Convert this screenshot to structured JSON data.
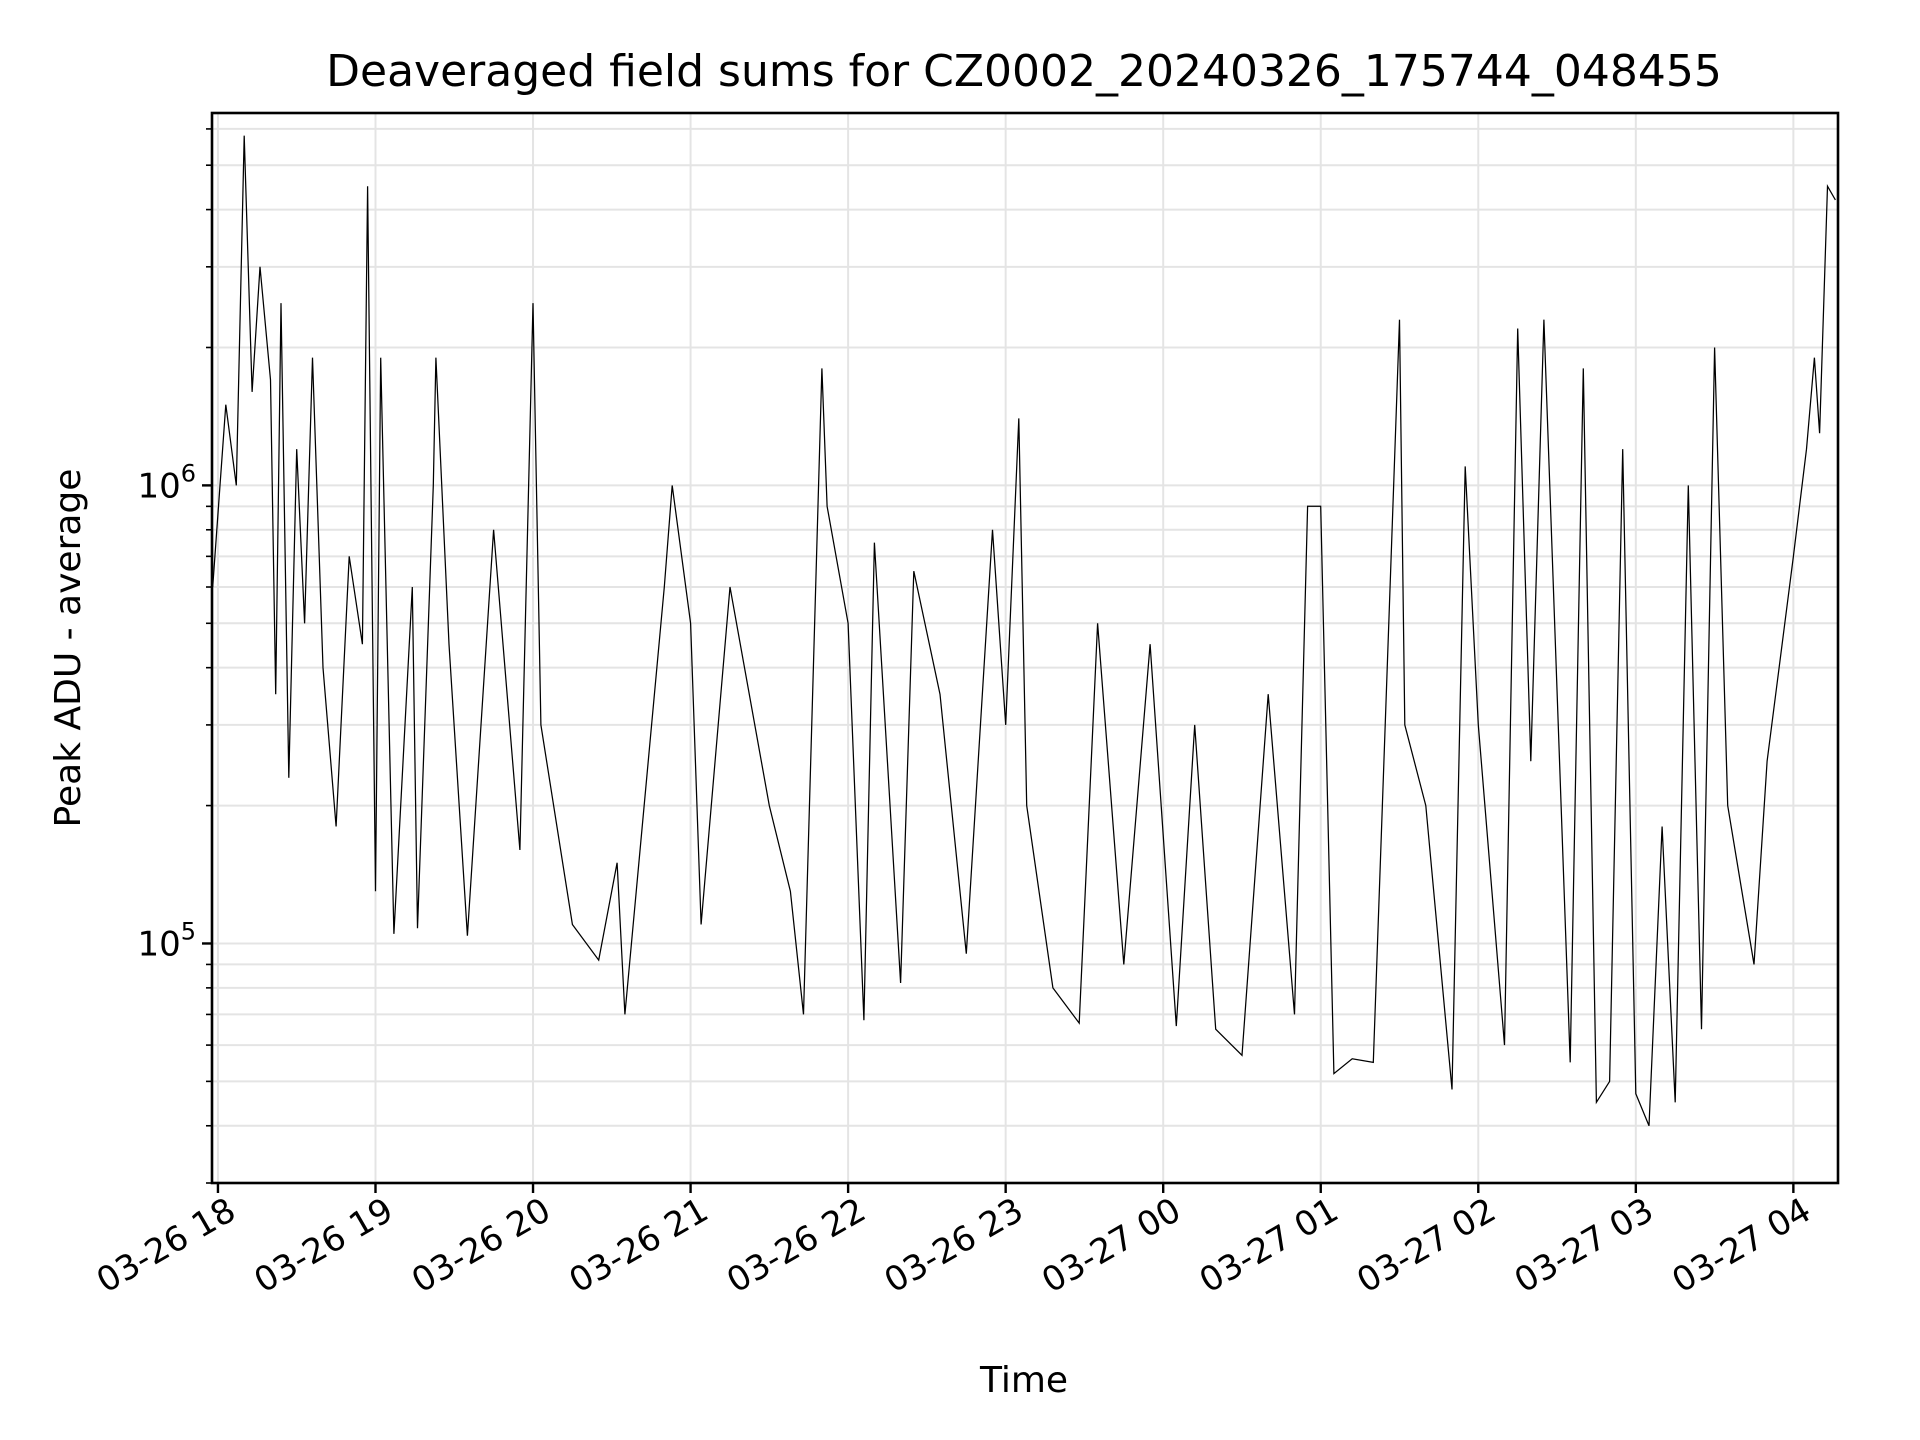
{
  "chart_data": {
    "type": "line",
    "title": "Deaveraged field sums for CZ0002_20240326_175744_048455",
    "xlabel": "Time",
    "ylabel": "Peak ADU - average",
    "yscale": "log",
    "ylim": [
      30000,
      6500000
    ],
    "xlim": [
      "2024-03-26 17:57:44",
      "2024-03-27 04:17:00"
    ],
    "xtick_labels": [
      "03-26 18",
      "03-26 19",
      "03-26 20",
      "03-26 21",
      "03-26 22",
      "03-26 23",
      "03-27 00",
      "03-27 01",
      "03-27 02",
      "03-27 03",
      "03-27 04"
    ],
    "xtick_times": [
      "2024-03-26 18:00",
      "2024-03-26 19:00",
      "2024-03-26 20:00",
      "2024-03-26 21:00",
      "2024-03-26 22:00",
      "2024-03-26 23:00",
      "2024-03-27 00:00",
      "2024-03-27 01:00",
      "2024-03-27 02:00",
      "2024-03-27 03:00",
      "2024-03-27 04:00"
    ],
    "ytick_labels": [
      {
        "base": "10",
        "exp": "5",
        "value": 100000
      },
      {
        "base": "10",
        "exp": "6",
        "value": 1000000
      }
    ],
    "grid": true,
    "legend": "none",
    "series": [
      {
        "color": "#000000",
        "points": [
          [
            "2024-03-26 17:58",
            600000
          ],
          [
            "2024-03-26 18:03",
            1500000
          ],
          [
            "2024-03-26 18:07",
            1000000
          ],
          [
            "2024-03-26 18:10",
            5800000
          ],
          [
            "2024-03-26 18:13",
            1600000
          ],
          [
            "2024-03-26 18:16",
            3000000
          ],
          [
            "2024-03-26 18:20",
            1700000
          ],
          [
            "2024-03-26 18:22",
            350000
          ],
          [
            "2024-03-26 18:24",
            2500000
          ],
          [
            "2024-03-26 18:27",
            230000
          ],
          [
            "2024-03-26 18:30",
            1200000
          ],
          [
            "2024-03-26 18:33",
            500000
          ],
          [
            "2024-03-26 18:36",
            1900000
          ],
          [
            "2024-03-26 18:40",
            400000
          ],
          [
            "2024-03-26 18:45",
            180000
          ],
          [
            "2024-03-26 18:50",
            700000
          ],
          [
            "2024-03-26 18:55",
            450000
          ],
          [
            "2024-03-26 18:57",
            4500000
          ],
          [
            "2024-03-26 19:00",
            130000
          ],
          [
            "2024-03-26 19:02",
            1900000
          ],
          [
            "2024-03-26 19:07",
            105000
          ],
          [
            "2024-03-26 19:14",
            600000
          ],
          [
            "2024-03-26 19:16",
            108000
          ],
          [
            "2024-03-26 19:22",
            1000000
          ],
          [
            "2024-03-26 19:23",
            1900000
          ],
          [
            "2024-03-26 19:28",
            450000
          ],
          [
            "2024-03-26 19:35",
            104000
          ],
          [
            "2024-03-26 19:45",
            800000
          ],
          [
            "2024-03-26 19:55",
            160000
          ],
          [
            "2024-03-26 20:00",
            2500000
          ],
          [
            "2024-03-26 20:03",
            300000
          ],
          [
            "2024-03-26 20:15",
            110000
          ],
          [
            "2024-03-26 20:25",
            92000
          ],
          [
            "2024-03-26 20:32",
            150000
          ],
          [
            "2024-03-26 20:35",
            70000
          ],
          [
            "2024-03-26 20:50",
            600000
          ],
          [
            "2024-03-26 20:53",
            1000000
          ],
          [
            "2024-03-26 21:00",
            500000
          ],
          [
            "2024-03-26 21:04",
            110000
          ],
          [
            "2024-03-26 21:15",
            600000
          ],
          [
            "2024-03-26 21:30",
            200000
          ],
          [
            "2024-03-26 21:38",
            130000
          ],
          [
            "2024-03-26 21:43",
            70000
          ],
          [
            "2024-03-26 21:50",
            1800000
          ],
          [
            "2024-03-26 21:52",
            900000
          ],
          [
            "2024-03-26 22:00",
            500000
          ],
          [
            "2024-03-26 22:06",
            68000
          ],
          [
            "2024-03-26 22:10",
            750000
          ],
          [
            "2024-03-26 22:20",
            82000
          ],
          [
            "2024-03-26 22:25",
            650000
          ],
          [
            "2024-03-26 22:35",
            350000
          ],
          [
            "2024-03-26 22:45",
            95000
          ],
          [
            "2024-03-26 22:55",
            800000
          ],
          [
            "2024-03-26 23:00",
            300000
          ],
          [
            "2024-03-26 23:05",
            1400000
          ],
          [
            "2024-03-26 23:08",
            200000
          ],
          [
            "2024-03-26 23:18",
            80000
          ],
          [
            "2024-03-26 23:28",
            67000
          ],
          [
            "2024-03-26 23:35",
            500000
          ],
          [
            "2024-03-26 23:45",
            90000
          ],
          [
            "2024-03-26 23:55",
            450000
          ],
          [
            "2024-03-27 00:05",
            66000
          ],
          [
            "2024-03-27 00:12",
            300000
          ],
          [
            "2024-03-27 00:20",
            65000
          ],
          [
            "2024-03-27 00:30",
            57000
          ],
          [
            "2024-03-27 00:40",
            350000
          ],
          [
            "2024-03-27 00:50",
            70000
          ],
          [
            "2024-03-27 00:55",
            900000
          ],
          [
            "2024-03-27 01:00",
            900000
          ],
          [
            "2024-03-27 01:05",
            52000
          ],
          [
            "2024-03-27 01:12",
            56000
          ],
          [
            "2024-03-27 01:20",
            55000
          ],
          [
            "2024-03-27 01:30",
            2300000
          ],
          [
            "2024-03-27 01:32",
            300000
          ],
          [
            "2024-03-27 01:40",
            200000
          ],
          [
            "2024-03-27 01:50",
            48000
          ],
          [
            "2024-03-27 01:55",
            1100000
          ],
          [
            "2024-03-27 02:00",
            300000
          ],
          [
            "2024-03-27 02:10",
            60000
          ],
          [
            "2024-03-27 02:15",
            2200000
          ],
          [
            "2024-03-27 02:20",
            250000
          ],
          [
            "2024-03-27 02:25",
            2300000
          ],
          [
            "2024-03-27 02:35",
            55000
          ],
          [
            "2024-03-27 02:40",
            1800000
          ],
          [
            "2024-03-27 02:45",
            45000
          ],
          [
            "2024-03-27 02:50",
            50000
          ],
          [
            "2024-03-27 02:55",
            1200000
          ],
          [
            "2024-03-27 03:00",
            47000
          ],
          [
            "2024-03-27 03:05",
            40000
          ],
          [
            "2024-03-27 03:10",
            180000
          ],
          [
            "2024-03-27 03:15",
            45000
          ],
          [
            "2024-03-27 03:20",
            1000000
          ],
          [
            "2024-03-27 03:25",
            65000
          ],
          [
            "2024-03-27 03:30",
            2000000
          ],
          [
            "2024-03-27 03:35",
            200000
          ],
          [
            "2024-03-27 03:45",
            90000
          ],
          [
            "2024-03-27 03:50",
            250000
          ],
          [
            "2024-03-27 04:00",
            700000
          ],
          [
            "2024-03-27 04:05",
            1200000
          ],
          [
            "2024-03-27 04:08",
            1900000
          ],
          [
            "2024-03-27 04:10",
            1300000
          ],
          [
            "2024-03-27 04:13",
            4500000
          ],
          [
            "2024-03-27 04:16",
            4200000
          ]
        ]
      }
    ]
  }
}
